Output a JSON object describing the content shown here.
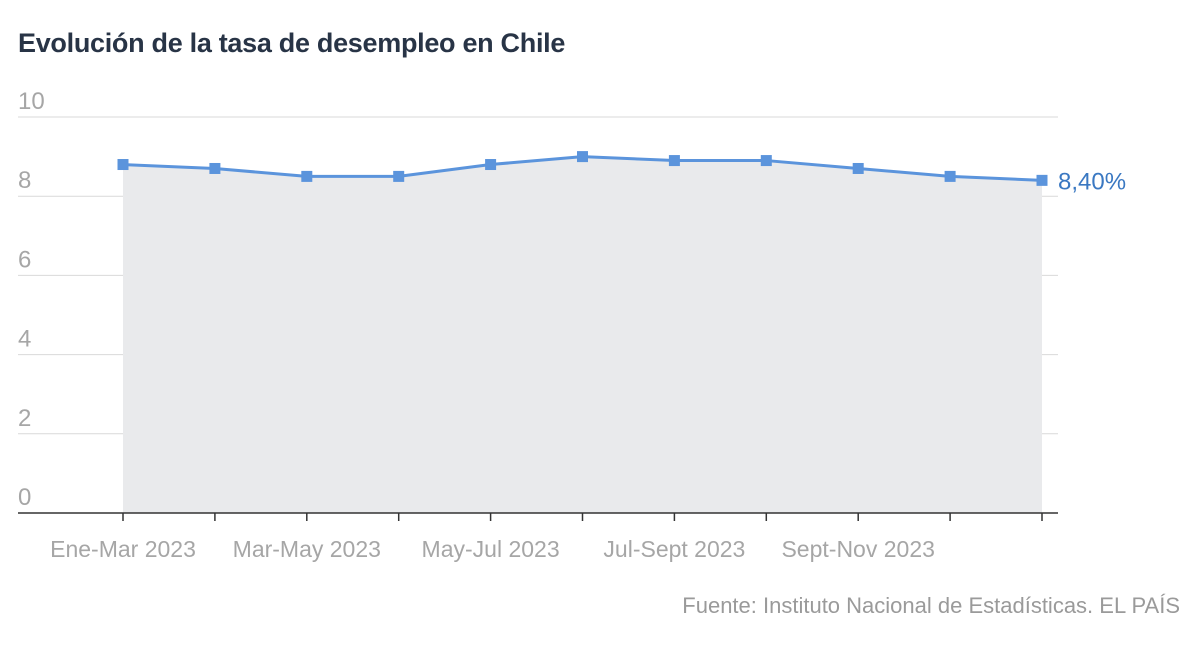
{
  "title": "Evolución de la tasa de desempleo en Chile",
  "source": "Fuente: Instituto Nacional de Estadísticas. EL PAÍS",
  "colors": {
    "line": "#5b94dc",
    "area": "#e9eaec",
    "grid": "#d9d9d9",
    "axis": "#333333",
    "label": "#3a78c2"
  },
  "chart_data": {
    "type": "area",
    "title": "Evolución de la tasa de desempleo en Chile",
    "x_tick_labels": [
      "Ene-Mar 2023",
      "Mar-May 2023",
      "May-Jul 2023",
      "Jul-Sept 2023",
      "Sept-Nov 2023"
    ],
    "y_ticks": [
      0,
      2,
      4,
      6,
      8,
      10
    ],
    "ylim": [
      0,
      10
    ],
    "grid": true,
    "series": [
      {
        "values": [
          8.8,
          8.7,
          8.5,
          8.5,
          8.8,
          9.0,
          8.9,
          8.9,
          8.7,
          8.5,
          8.4
        ]
      }
    ],
    "end_label": "8,40%",
    "x_tick_label_every": 2
  }
}
